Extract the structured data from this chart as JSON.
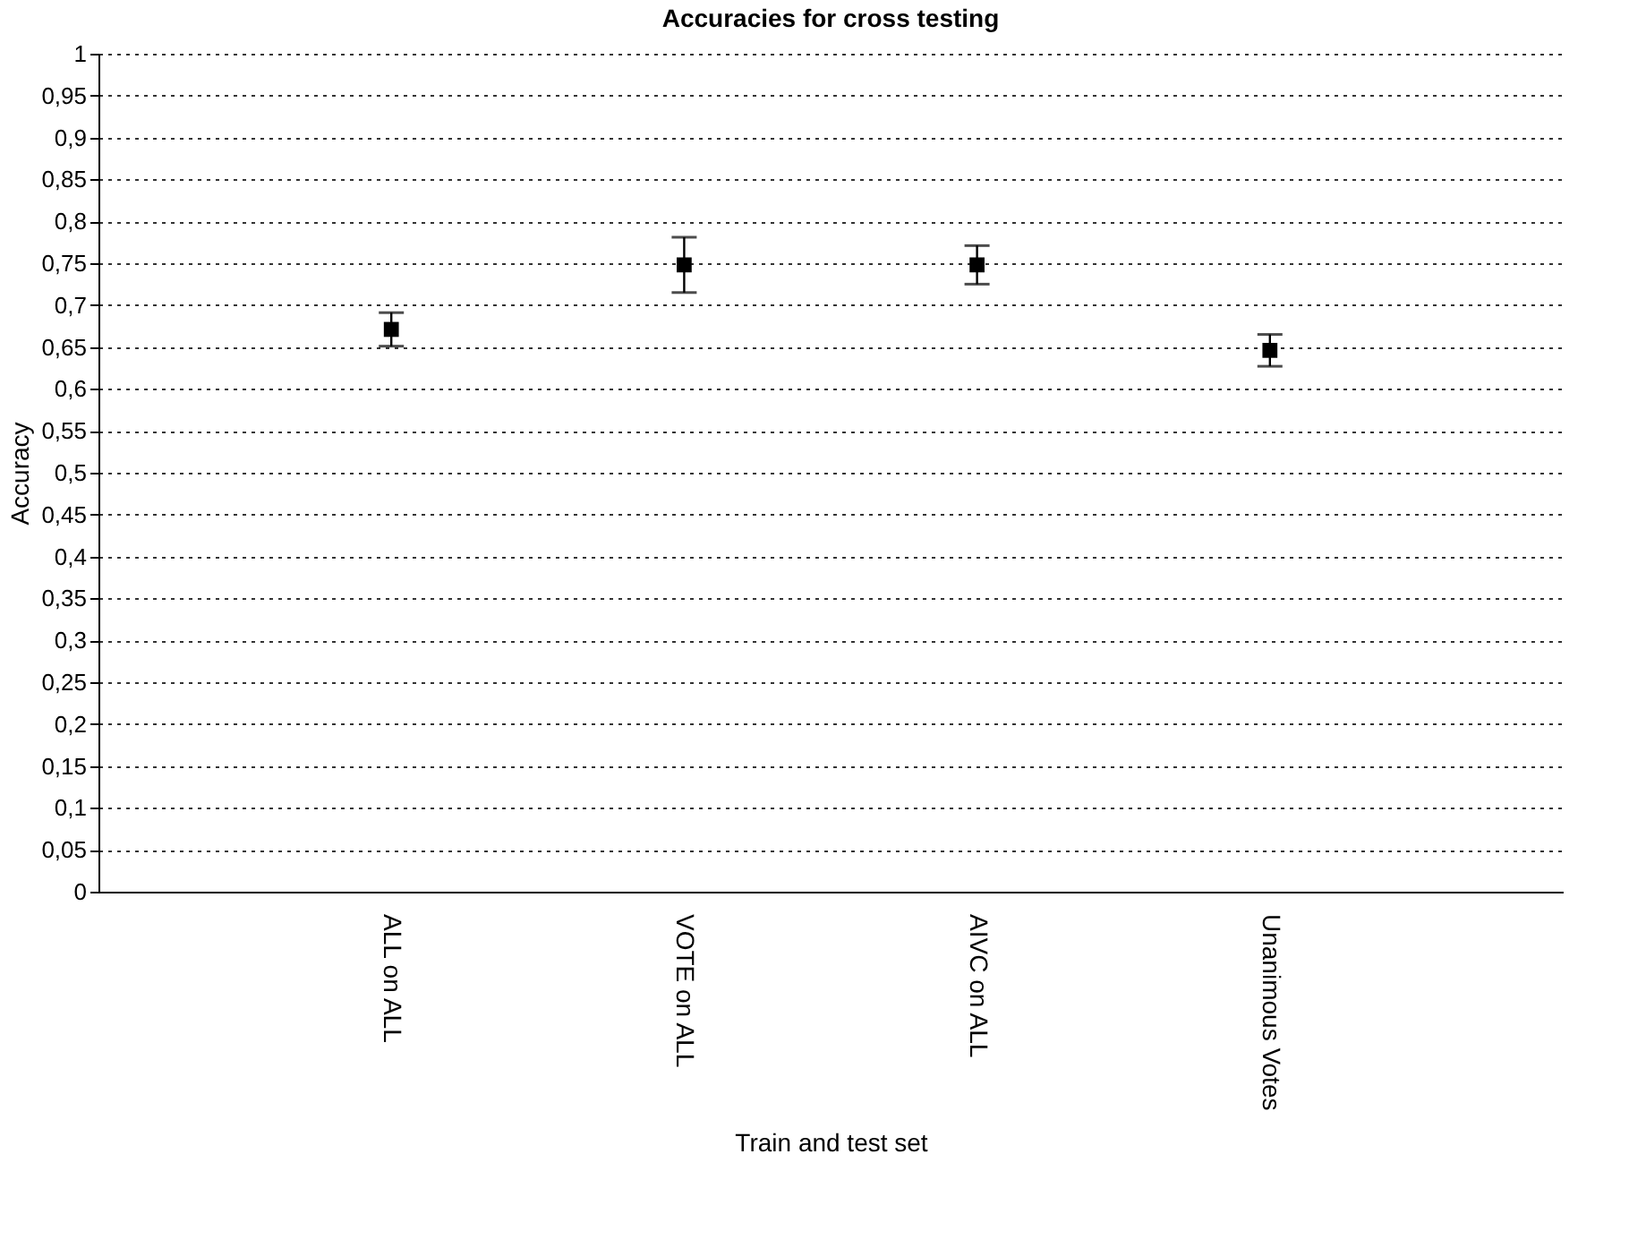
{
  "chart_data": {
    "type": "scatter",
    "title": "Accuracies for cross testing",
    "xlabel": "Train and test set",
    "ylabel": "Accuracy",
    "categories": [
      "ALL on ALL",
      "VOTE on ALL",
      "AIVC on ALL",
      "Unanimous Votes"
    ],
    "values": [
      0.671,
      0.748,
      0.748,
      0.646
    ],
    "errors": [
      0.02,
      0.033,
      0.023,
      0.019
    ],
    "color": "#000000",
    "marker": "square",
    "grid": "y",
    "ylim": [
      0,
      1
    ],
    "yticks": [
      0,
      {
        "value": 0.05,
        "label": "0,05"
      },
      {
        "value": 0.1,
        "label": "0,1"
      },
      {
        "value": 0.15,
        "label": "0,15"
      },
      {
        "value": 0.2,
        "label": "0,2"
      },
      {
        "value": 0.25,
        "label": "0,25"
      },
      {
        "value": 0.3,
        "label": "0,3"
      },
      {
        "value": 0.35,
        "label": "0,35"
      },
      {
        "value": 0.4,
        "label": "0,4"
      },
      {
        "value": 0.45,
        "label": "0,45"
      },
      {
        "value": 0.5,
        "label": "0,5"
      },
      {
        "value": 0.55,
        "label": "0,55"
      },
      {
        "value": 0.6,
        "label": "0,6"
      },
      {
        "value": 0.65,
        "label": "0,65"
      },
      {
        "value": 0.7,
        "label": "0,7"
      },
      {
        "value": 0.75,
        "label": "0,75"
      },
      {
        "value": 0.8,
        "label": "0,8"
      },
      {
        "value": 0.85,
        "label": "0,85"
      },
      {
        "value": 0.9,
        "label": "0,9"
      },
      {
        "value": 0.95,
        "label": "0,95"
      },
      1
    ]
  }
}
